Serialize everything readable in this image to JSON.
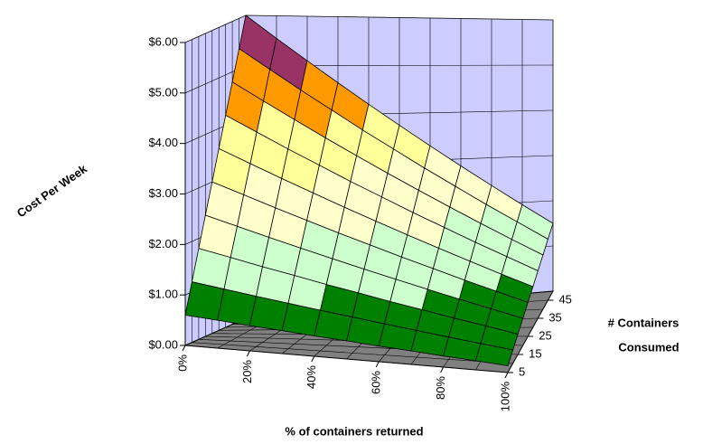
{
  "chart_data": {
    "type": "surface",
    "ylabel": "Cost Per Week",
    "xlabel": "% of containers returned",
    "zlabel": [
      "# Containers",
      "Consumed"
    ],
    "x": [
      0,
      10,
      20,
      30,
      40,
      50,
      60,
      70,
      80,
      90,
      100
    ],
    "xlim": [
      0,
      100
    ],
    "xticks": [
      {
        "value": 0,
        "label": "0%"
      },
      {
        "value": 20,
        "label": "20%"
      },
      {
        "value": 40,
        "label": "40%"
      },
      {
        "value": 60,
        "label": "60%"
      },
      {
        "value": 80,
        "label": "80%"
      },
      {
        "value": 100,
        "label": "100%"
      }
    ],
    "z": [
      5,
      10,
      15,
      20,
      25,
      30,
      35,
      40,
      45,
      50
    ],
    "zlim": [
      5,
      50
    ],
    "zticks": [
      5,
      15,
      25,
      35,
      45
    ],
    "ylim": [
      0,
      6
    ],
    "yticks": [
      {
        "value": 0,
        "label": "$0.00"
      },
      {
        "value": 1,
        "label": "$1.00"
      },
      {
        "value": 2,
        "label": "$2.00"
      },
      {
        "value": 3,
        "label": "$3.00"
      },
      {
        "value": 4,
        "label": "$4.00"
      },
      {
        "value": 5,
        "label": "$5.00"
      },
      {
        "value": 6,
        "label": "$6.00"
      }
    ],
    "grid": true,
    "band_colors": [
      "#008000",
      "#ccffcc",
      "#ffffcc",
      "#ffff99",
      "#ff9900",
      "#993366",
      "#800000"
    ],
    "wall_color": "#ccccff",
    "floor_color": "#808080",
    "values": [
      [
        0.6,
        0.56,
        0.51,
        0.47,
        0.42,
        0.38,
        0.33,
        0.29,
        0.24,
        0.2,
        0.15
      ],
      [
        1.2,
        1.11,
        1.02,
        0.93,
        0.84,
        0.75,
        0.66,
        0.57,
        0.48,
        0.39,
        0.3
      ],
      [
        1.8,
        1.67,
        1.53,
        1.4,
        1.26,
        1.13,
        0.99,
        0.86,
        0.72,
        0.59,
        0.45
      ],
      [
        2.4,
        2.22,
        2.04,
        1.86,
        1.68,
        1.5,
        1.32,
        1.14,
        0.96,
        0.78,
        0.6
      ],
      [
        3.0,
        2.78,
        2.55,
        2.33,
        2.1,
        1.88,
        1.65,
        1.43,
        1.2,
        0.98,
        0.75
      ],
      [
        3.6,
        3.33,
        3.06,
        2.79,
        2.52,
        2.25,
        1.98,
        1.71,
        1.44,
        1.17,
        0.9
      ],
      [
        4.2,
        3.89,
        3.57,
        3.26,
        2.94,
        2.63,
        2.31,
        2.0,
        1.68,
        1.37,
        1.05
      ],
      [
        4.8,
        4.44,
        4.08,
        3.72,
        3.36,
        3.0,
        2.64,
        2.28,
        1.92,
        1.56,
        1.2
      ],
      [
        5.4,
        5.0,
        4.59,
        4.19,
        3.78,
        3.38,
        2.97,
        2.57,
        2.16,
        1.76,
        1.35
      ],
      [
        6.0,
        5.55,
        5.1,
        4.65,
        4.2,
        3.75,
        3.3,
        2.85,
        2.4,
        1.95,
        1.5
      ]
    ]
  }
}
